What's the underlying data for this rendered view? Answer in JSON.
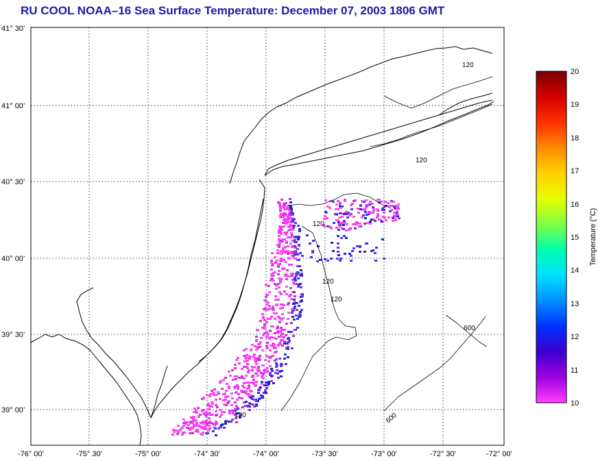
{
  "title": "RU COOL  NOAA–16  Sea Surface Temperature:  December 07, 2003 1806 GMT",
  "map": {
    "lat_ticks": [
      "41° 30’",
      "41° 00’",
      "40° 30’",
      "40° 00’",
      "39° 30’",
      "39° 00’"
    ],
    "lon_ticks": [
      "-76° 00’",
      "-75° 30’",
      "-75° 00’",
      "-74° 30’",
      "-74° 00’",
      "-73° 30’",
      "-73° 00’",
      "-72° 30’",
      "-72° 00’"
    ],
    "lat_range": [
      38.75,
      41.5
    ],
    "lon_range": [
      -76.0,
      -72.0
    ],
    "grid": true,
    "isobath_labels": [
      "120",
      "120",
      "120",
      "120",
      "120",
      "120",
      "600",
      "600"
    ],
    "coastline_color": "#000000"
  },
  "colorbar": {
    "label": "Temperature (°C)",
    "ticks": [
      "20",
      "19",
      "18",
      "17",
      "16",
      "15",
      "14",
      "13",
      "12",
      "11",
      "10"
    ],
    "range": [
      10,
      20
    ],
    "colors_top_to_bottom": [
      "#7a0000",
      "#d40000",
      "#ff3000",
      "#ff8a00",
      "#ffd000",
      "#e6ff00",
      "#7fff40",
      "#00ffb0",
      "#00e0ff",
      "#0090ff",
      "#0030ff",
      "#3a00d0",
      "#a000e0",
      "#ff40ff"
    ]
  },
  "sst_colors": [
    "#ff33ff",
    "#ff44ee",
    "#ee55ee",
    "#cc33dd",
    "#9933dd",
    "#6633dd",
    "#3333ee",
    "#2222cc"
  ]
}
